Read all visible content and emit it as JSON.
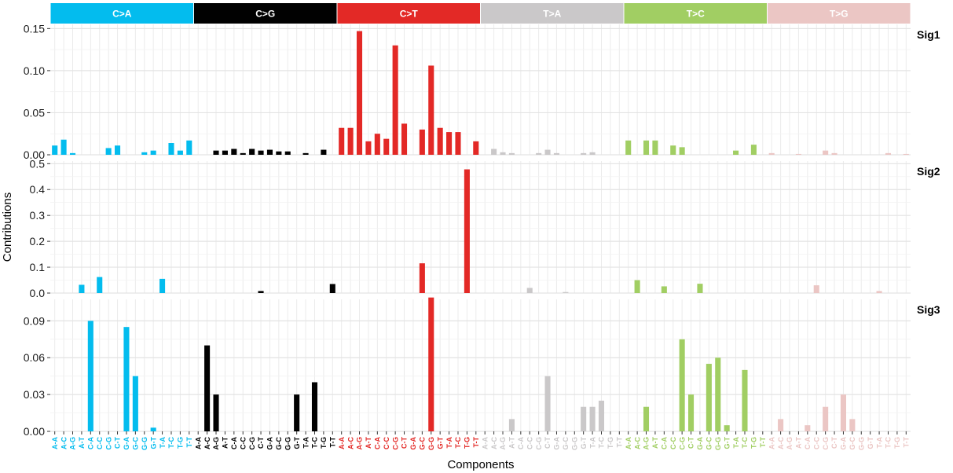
{
  "chart_data": {
    "type": "bar",
    "xlabel": "Components",
    "ylabel": "Contributions",
    "groups": [
      {
        "label": "C>A",
        "color": "#03BCEE",
        "text_color": "#ffffff"
      },
      {
        "label": "C>G",
        "color": "#010101",
        "text_color": "#ffffff"
      },
      {
        "label": "C>T",
        "color": "#E32926",
        "text_color": "#ffffff"
      },
      {
        "label": "T>A",
        "color": "#CAC8C9",
        "text_color": "#ffffff"
      },
      {
        "label": "T>C",
        "color": "#A1CE63",
        "text_color": "#ffffff"
      },
      {
        "label": "T>G",
        "color": "#EBC6C4",
        "text_color": "#ffffff"
      }
    ],
    "contexts": [
      "A-A",
      "A-C",
      "A-G",
      "A-T",
      "C-A",
      "C-C",
      "C-G",
      "C-T",
      "G-A",
      "G-C",
      "G-G",
      "G-T",
      "T-A",
      "T-C",
      "T-G",
      "T-T"
    ],
    "series": [
      {
        "name": "Sig1",
        "ylim": [
          0,
          0.155
        ],
        "ticks": [
          0.0,
          0.05,
          0.1,
          0.15
        ],
        "tick_labels": [
          "0.00",
          "0.05",
          "0.10",
          "0.15"
        ],
        "values": [
          0.011,
          0.018,
          0.002,
          0,
          0,
          0,
          0.008,
          0.011,
          0,
          0,
          0.003,
          0.005,
          0,
          0.014,
          0.005,
          0.017,
          0,
          0,
          0.005,
          0.005,
          0.007,
          0.002,
          0.007,
          0.005,
          0.006,
          0.004,
          0.004,
          0,
          0.002,
          0,
          0.006,
          0,
          0.032,
          0.032,
          0.147,
          0.016,
          0.025,
          0.019,
          0.13,
          0.037,
          0,
          0.03,
          0.106,
          0.032,
          0.027,
          0.027,
          0,
          0.016,
          0,
          0.007,
          0.003,
          0.002,
          0,
          0,
          0.002,
          0.006,
          0.002,
          0,
          0,
          0.002,
          0.003,
          0,
          0,
          0,
          0.017,
          0,
          0.017,
          0.017,
          0,
          0.011,
          0.009,
          0,
          0,
          0,
          0,
          0,
          0.005,
          0,
          0.012,
          0,
          0.002,
          0,
          0,
          0.001,
          0,
          0,
          0.005,
          0.002,
          0,
          0,
          0,
          0,
          0,
          0.002,
          0,
          0.001
        ]
      },
      {
        "name": "Sig2",
        "ylim": [
          0,
          0.51
        ],
        "ticks": [
          0.0,
          0.1,
          0.2,
          0.3,
          0.4,
          0.5
        ],
        "tick_labels": [
          "0.0",
          "0.1",
          "0.2",
          "0.3",
          "0.4",
          "0.5"
        ],
        "values": [
          0,
          0,
          0,
          0.032,
          0,
          0.062,
          0,
          0,
          0,
          0,
          0,
          0,
          0.055,
          0,
          0,
          0,
          0,
          0,
          0,
          0,
          0,
          0,
          0,
          0.008,
          0,
          0,
          0,
          0,
          0,
          0,
          0,
          0.035,
          0,
          0,
          0,
          0,
          0,
          0,
          0,
          0,
          0,
          0.115,
          0,
          0,
          0,
          0,
          0.478,
          0,
          0,
          0,
          0,
          0,
          0,
          0.02,
          0,
          0,
          0,
          0.004,
          0,
          0,
          0,
          0,
          0,
          0,
          0,
          0.05,
          0,
          0,
          0.026,
          0,
          0,
          0,
          0.036,
          0,
          0,
          0,
          0,
          0,
          0,
          0,
          0,
          0,
          0,
          0,
          0,
          0.03,
          0,
          0,
          0,
          0,
          0,
          0,
          0.008,
          0,
          0,
          0
        ]
      },
      {
        "name": "Sig3",
        "ylim": [
          0,
          0.1075
        ],
        "ticks": [
          0.0,
          0.03,
          0.06,
          0.09
        ],
        "tick_labels": [
          "0.00",
          "0.03",
          "0.06",
          "0.09"
        ],
        "values": [
          0,
          0,
          0,
          0,
          0.09,
          0,
          0,
          0,
          0.085,
          0.045,
          0,
          0.003,
          0,
          0,
          0,
          0,
          0,
          0.07,
          0.03,
          0,
          0,
          0,
          0,
          0,
          0,
          0,
          0,
          0.03,
          0,
          0.04,
          0,
          0,
          0,
          0,
          0,
          0,
          0,
          0,
          0,
          0,
          0,
          0,
          0.109,
          0,
          0,
          0,
          0,
          0,
          0,
          0,
          0,
          0.01,
          0,
          0,
          0,
          0.045,
          0,
          0,
          0,
          0.02,
          0.02,
          0.025,
          0,
          0,
          0,
          0,
          0.02,
          0,
          0,
          0,
          0.075,
          0.03,
          0,
          0.055,
          0.06,
          0.005,
          0,
          0.05,
          0,
          0,
          0,
          0.01,
          0,
          0,
          0.005,
          0,
          0.02,
          0,
          0.03,
          0.01,
          0,
          0,
          0,
          0,
          0,
          0
        ]
      }
    ]
  }
}
